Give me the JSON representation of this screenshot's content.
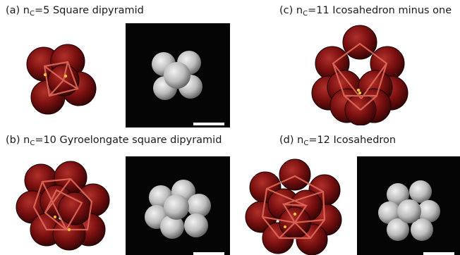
{
  "panels": [
    {
      "id": "a",
      "label_prefix": "(a) n",
      "subscript": "C",
      "label_suffix": "=5 Square dipyramid",
      "shape": "square-dipyramid"
    },
    {
      "id": "b",
      "label_prefix": "(b) n",
      "subscript": "C",
      "label_suffix": "=10 Gyroelongate  square dipyramid",
      "shape": "gyroelongate-square-dipyramid"
    },
    {
      "id": "c",
      "label_prefix": "(c) n",
      "subscript": "C",
      "label_suffix": "=11 Icosahedron  minus one",
      "shape": "icosahedron-minus-one"
    },
    {
      "id": "d",
      "label_prefix": "(d) n",
      "subscript": "C",
      "label_suffix": "=12 Icosahedron",
      "shape": "icosahedron"
    }
  ],
  "colors": {
    "sphere_dark": "#3d0606",
    "sphere_mid": "#7a1010",
    "sphere_light": "#b0302a",
    "bond_line": "#e06a5a",
    "contact_point": "#f3c23a",
    "sem_background": "#050505",
    "sem_particle": "#c8c8c8",
    "scale_bar": "#ffffff"
  }
}
